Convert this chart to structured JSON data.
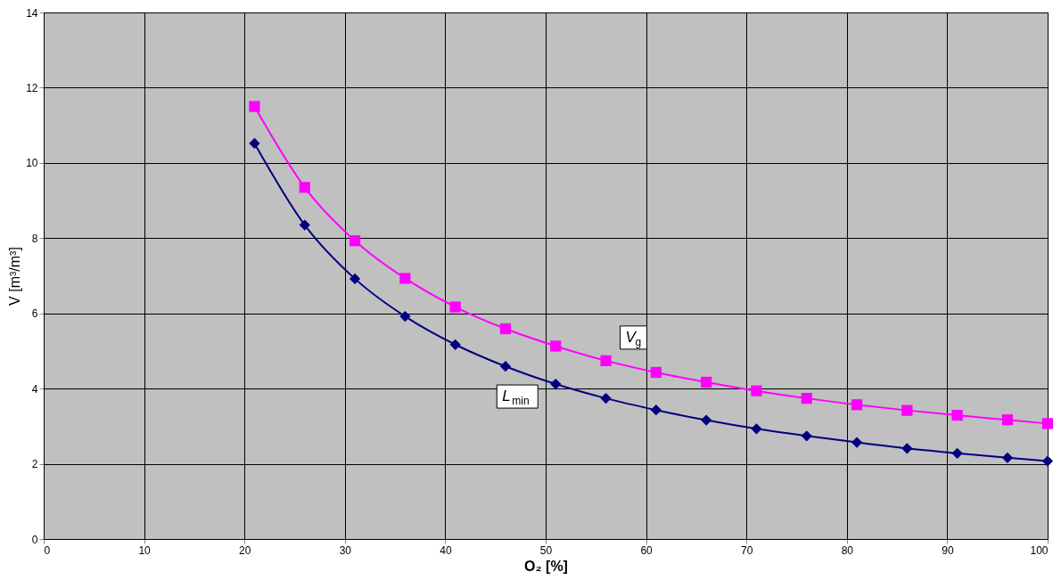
{
  "chart_data": {
    "type": "line",
    "xlabel": "O₂   [%]",
    "ylabel": "V  [m³/m³]",
    "x": [
      21,
      26,
      31,
      36,
      41,
      46,
      51,
      56,
      61,
      66,
      71,
      76,
      81,
      86,
      91,
      96,
      100
    ],
    "series": [
      {
        "name": "V$_{g}$",
        "color": "#ff00ff",
        "marker": "square",
        "values": [
          11.5,
          9.35,
          7.93,
          6.93,
          6.17,
          5.59,
          5.13,
          4.74,
          4.43,
          4.17,
          3.94,
          3.74,
          3.57,
          3.42,
          3.29,
          3.17,
          3.07
        ]
      },
      {
        "name": "L$_{min}$",
        "color": "#000080",
        "marker": "diamond",
        "values": [
          10.52,
          8.35,
          6.92,
          5.92,
          5.17,
          4.59,
          4.12,
          3.74,
          3.43,
          3.16,
          2.93,
          2.74,
          2.57,
          2.41,
          2.28,
          2.16,
          2.07
        ]
      }
    ],
    "xlim": [
      0,
      100
    ],
    "xticks": [
      0,
      10,
      20,
      30,
      40,
      50,
      60,
      70,
      80,
      90,
      100
    ],
    "ylim": [
      0,
      14
    ],
    "yticks": [
      0,
      2,
      4,
      6,
      8,
      10,
      12,
      14
    ],
    "grid": true,
    "line_style": "solid"
  }
}
